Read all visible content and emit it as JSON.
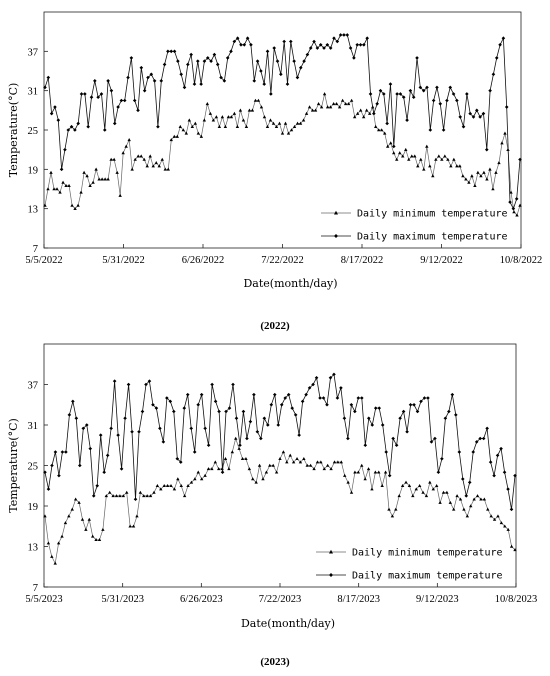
{
  "chart_data": [
    {
      "type": "line",
      "caption": "(2022)",
      "xlabel": "Date(month/day)",
      "ylabel": "Temperature(°C)",
      "ylim": [
        7,
        43
      ],
      "yticks": [
        7,
        13,
        19,
        25,
        31,
        37
      ],
      "x_tick_labels": [
        "5/5/2022",
        "5/31/2022",
        "6/26/2022",
        "7/22/2022",
        "8/17/2022",
        "9/12/2022",
        "10/8/2022"
      ],
      "legend_position": "lower-right",
      "grid": false,
      "series": [
        {
          "name": "Daily minimum temperature",
          "marker": "triangle",
          "values": [
            13.5,
            16,
            18.5,
            16,
            16,
            15.5,
            17,
            16.5,
            16.5,
            13.5,
            13,
            13.5,
            15.5,
            18.5,
            18,
            16.5,
            17,
            19,
            17.5,
            17.5,
            17.5,
            17.5,
            20.5,
            20.5,
            18.5,
            15,
            21.5,
            22.5,
            23.5,
            19,
            20.5,
            21,
            21,
            20.5,
            19.5,
            21,
            19.5,
            20,
            19.5,
            20.5,
            19,
            19,
            23.5,
            24,
            24,
            25.5,
            25,
            24.5,
            26.5,
            25.5,
            26,
            24.5,
            24,
            26.5,
            29,
            27.5,
            26.5,
            27,
            25.5,
            27,
            25.5,
            27,
            27,
            27.5,
            25.5,
            28,
            26.5,
            25.5,
            28,
            28,
            29.5,
            29.5,
            28.5,
            27,
            25.5,
            26.5,
            26,
            25.5,
            26,
            24.5,
            26,
            24.5,
            25,
            25.5,
            26,
            26,
            26.5,
            27.5,
            28.5,
            28,
            28,
            29,
            28.5,
            30.5,
            28.5,
            28.5,
            29,
            29,
            28.5,
            29.5,
            29,
            29,
            29.5,
            27,
            27.5,
            28,
            27,
            28,
            27.5,
            28.5,
            25.5,
            25,
            25,
            24.5,
            22.5,
            23,
            21.5,
            20.5,
            21.5,
            21,
            22,
            20.5,
            21,
            21,
            19.5,
            20.5,
            19,
            22.5,
            19.5,
            18,
            20.5,
            21,
            20.5,
            21,
            20.5,
            19.5,
            20.5,
            19.5,
            19.5,
            18,
            17.5,
            17,
            18,
            16.5,
            18.5,
            18,
            18.5,
            17.5,
            19,
            16,
            18.5,
            20,
            23,
            24.5,
            22,
            15.5,
            12.5,
            12,
            13.5
          ]
        },
        {
          "name": "Daily maximum temperature",
          "marker": "diamond",
          "values": [
            31.5,
            33,
            27.5,
            28.5,
            26.5,
            19,
            22,
            25,
            25.5,
            25,
            26,
            30.5,
            30.5,
            25.5,
            30,
            32.5,
            30,
            30.5,
            25,
            32.5,
            31,
            26,
            28.5,
            29.5,
            29.5,
            33,
            36,
            29.5,
            28,
            34.5,
            31,
            33,
            33.5,
            32.5,
            25.5,
            32.5,
            35,
            37,
            37,
            37,
            35.5,
            33.5,
            31.5,
            35,
            36.5,
            32,
            35.5,
            32,
            35.5,
            36,
            35.5,
            36.5,
            35,
            33,
            32.5,
            36,
            37,
            38.5,
            39,
            38,
            38,
            39,
            38,
            32.5,
            35.5,
            34,
            32,
            37,
            30.5,
            37.5,
            35.5,
            33.5,
            38.5,
            32,
            38.5,
            35.5,
            33,
            34.5,
            35.5,
            36.5,
            37.5,
            38.5,
            37.5,
            38,
            37.5,
            38,
            37.5,
            39,
            38.5,
            39.5,
            39.5,
            39.5,
            37.5,
            36,
            38,
            38,
            38,
            39,
            30.5,
            27.5,
            29,
            31,
            30.5,
            26,
            32,
            22.5,
            30.5,
            30.5,
            30,
            26.5,
            31,
            30,
            36,
            31.5,
            31,
            31.5,
            25,
            29.5,
            31.5,
            29,
            25,
            29.5,
            31.5,
            30.5,
            29.5,
            27,
            25.5,
            30.5,
            27.5,
            27,
            28,
            27,
            27.5,
            22,
            31,
            33.5,
            36,
            38,
            39,
            28.5,
            14,
            13,
            14.5,
            20.5
          ]
        }
      ]
    },
    {
      "type": "line",
      "caption": "(2023)",
      "xlabel": "Date(month/day)",
      "ylabel": "Temperature(°C)",
      "ylim": [
        7,
        43
      ],
      "yticks": [
        7,
        13,
        19,
        25,
        31,
        37
      ],
      "x_tick_labels": [
        "5/5/2023",
        "5/31/2023",
        "6/26/2023",
        "7/22/2023",
        "8/17/2023",
        "9/12/2023",
        "10/8/2023"
      ],
      "legend_position": "lower-right",
      "grid": false,
      "series": [
        {
          "name": "Daily minimum temperature",
          "marker": "triangle",
          "values": [
            17.5,
            13.5,
            11.5,
            10.5,
            13.5,
            14.5,
            16.5,
            17.5,
            18.5,
            20,
            19.5,
            17,
            15.5,
            17,
            14.5,
            14,
            14,
            15.5,
            20.5,
            21,
            20.5,
            20.5,
            20.5,
            20.5,
            21,
            16,
            16,
            17.5,
            21,
            20.5,
            20.5,
            20.5,
            21,
            22,
            21.5,
            22,
            22,
            22,
            21.5,
            23,
            22,
            20.5,
            22,
            22.5,
            23,
            24,
            23,
            23.5,
            24.5,
            24.5,
            25.5,
            24.5,
            24.5,
            26,
            24.5,
            27,
            29,
            27.5,
            26,
            26,
            24.5,
            23,
            22.5,
            25,
            23,
            24,
            25,
            25,
            24,
            26,
            27,
            25.5,
            26.5,
            25.5,
            26,
            25.5,
            26,
            25,
            25,
            24.5,
            25.5,
            25.5,
            24.5,
            25,
            24.5,
            25.5,
            25.5,
            25.5,
            23.5,
            22.5,
            21,
            24,
            24,
            25,
            23,
            24.5,
            21.5,
            24,
            24,
            22,
            24,
            18.5,
            17.5,
            18.5,
            20.5,
            22,
            22.5,
            22,
            20.5,
            21.5,
            22,
            21,
            20.5,
            22.5,
            21.5,
            22,
            19.5,
            21,
            21,
            19.5,
            18.5,
            20.5,
            20,
            18.5,
            17.5,
            19,
            20,
            20.5,
            20,
            20,
            18.5,
            17.5,
            17,
            17.5,
            16.5,
            16,
            15.5,
            13,
            12.5
          ]
        },
        {
          "name": "Daily maximum temperature",
          "marker": "diamond",
          "values": [
            24,
            21.5,
            25,
            27,
            23.5,
            27,
            27,
            32.5,
            34.5,
            32,
            25,
            30.5,
            31,
            27.5,
            20.5,
            22,
            29.5,
            24,
            26.5,
            30.5,
            37.5,
            29.5,
            24.5,
            32,
            37,
            30,
            20,
            30,
            33,
            37,
            37.5,
            34,
            33.5,
            30.5,
            28.5,
            35,
            34.5,
            33,
            26,
            25.5,
            33.5,
            35.5,
            30.5,
            27,
            34,
            35.5,
            30.5,
            28,
            37,
            34.5,
            33,
            24,
            33,
            33.5,
            37,
            32,
            28,
            33,
            29,
            31.5,
            35.5,
            30,
            29,
            32,
            31,
            34,
            35.5,
            31,
            34,
            35,
            35.5,
            33.5,
            32.5,
            29.5,
            34.5,
            35.5,
            36.5,
            37,
            38,
            35,
            35,
            34,
            38,
            38.5,
            35,
            36.5,
            32,
            29,
            34,
            33,
            35,
            35,
            28,
            32,
            31,
            33.5,
            33.5,
            31,
            27,
            23.5,
            29,
            28,
            32,
            33,
            30,
            34,
            34,
            33,
            34.5,
            35,
            35,
            28.5,
            29,
            24,
            26,
            32,
            33,
            35.5,
            32.5,
            27,
            23,
            20.5,
            22.5,
            27,
            28.5,
            29,
            29,
            30.5,
            25.5,
            23.5,
            26.5,
            27.5,
            24,
            21.5,
            18.5,
            23.5
          ]
        }
      ]
    }
  ]
}
